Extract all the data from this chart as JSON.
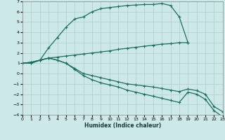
{
  "xlabel": "Humidex (Indice chaleur)",
  "bg_color": "#cce8e8",
  "grid_color": "#b0cccc",
  "line_color": "#1a7060",
  "xlim": [
    0,
    23
  ],
  "ylim": [
    -4,
    7
  ],
  "xticks": [
    0,
    1,
    2,
    3,
    4,
    5,
    6,
    7,
    8,
    9,
    10,
    11,
    12,
    13,
    14,
    15,
    16,
    17,
    18,
    19,
    20,
    21,
    22,
    23
  ],
  "yticks": [
    -4,
    -3,
    -2,
    -1,
    0,
    1,
    2,
    3,
    4,
    5,
    6,
    7
  ],
  "s1x": [
    0,
    1,
    2,
    3,
    4,
    5,
    6,
    7,
    8,
    9,
    10,
    11,
    12,
    13,
    14,
    15,
    16,
    17,
    18,
    19
  ],
  "s1y": [
    1.0,
    1.1,
    1.3,
    2.5,
    3.5,
    4.5,
    5.3,
    5.5,
    6.0,
    6.3,
    6.4,
    6.5,
    6.6,
    6.65,
    6.7,
    6.7,
    6.8,
    6.6,
    5.5,
    3.0
  ],
  "s2x": [
    0,
    1,
    2,
    3,
    4,
    5,
    6,
    7,
    8,
    9,
    10,
    11,
    12,
    13,
    14,
    15,
    16,
    17,
    18,
    19
  ],
  "s2y": [
    1.0,
    1.1,
    1.3,
    1.5,
    1.6,
    1.7,
    1.8,
    1.9,
    2.0,
    2.1,
    2.2,
    2.35,
    2.45,
    2.55,
    2.65,
    2.75,
    2.85,
    2.9,
    3.0,
    3.0
  ],
  "s3x": [
    0,
    1,
    2,
    3,
    4,
    5,
    6,
    7,
    8,
    9,
    10,
    11,
    12,
    13,
    14,
    15,
    16,
    17,
    18,
    19,
    20,
    21,
    22,
    23
  ],
  "s3y": [
    1.0,
    1.0,
    1.3,
    1.5,
    1.3,
    1.0,
    0.5,
    0.0,
    -0.2,
    -0.4,
    -0.6,
    -0.8,
    -1.0,
    -1.1,
    -1.2,
    -1.3,
    -1.45,
    -1.6,
    -1.75,
    -1.5,
    -1.65,
    -2.0,
    -3.2,
    -3.7
  ],
  "s4x": [
    0,
    1,
    2,
    3,
    4,
    5,
    6,
    7,
    8,
    9,
    10,
    11,
    12,
    13,
    14,
    15,
    16,
    17,
    18,
    19,
    20,
    21,
    22,
    23
  ],
  "s4y": [
    1.0,
    1.0,
    1.3,
    1.5,
    1.3,
    1.0,
    0.4,
    -0.2,
    -0.6,
    -0.9,
    -1.1,
    -1.3,
    -1.6,
    -1.8,
    -2.0,
    -2.2,
    -2.4,
    -2.6,
    -2.8,
    -1.8,
    -2.0,
    -2.5,
    -3.6,
    -4.2
  ]
}
